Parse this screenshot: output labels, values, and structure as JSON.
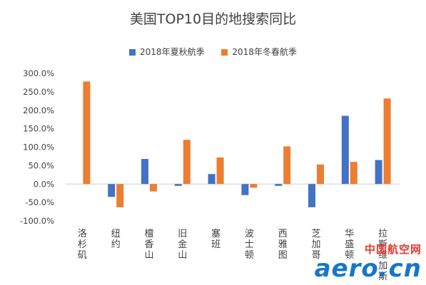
{
  "chart_data": {
    "type": "bar",
    "title": "美国TOP10目的地搜索同比",
    "categories": [
      "洛杉矶",
      "纽约",
      "檀香山",
      "旧金山",
      "塞班",
      "波士顿",
      "西雅图",
      "芝加哥",
      "华盛顿",
      "拉斯维加斯"
    ],
    "series": [
      {
        "name": "2018年夏秋航季",
        "color": "#4472C4",
        "values": [
          0,
          -35,
          68,
          -5,
          27,
          -30,
          -5,
          -63,
          185,
          65
        ]
      },
      {
        "name": "2018年冬春航季",
        "color": "#ED7D31",
        "values": [
          278,
          -63,
          -20,
          120,
          72,
          -10,
          102,
          53,
          60,
          232
        ]
      }
    ],
    "ylim": [
      -100,
      300
    ],
    "yticks": [
      "300.0%",
      "250.0%",
      "200.0%",
      "150.0%",
      "100.0%",
      "50.0%",
      "0.0%",
      "-50.0%",
      "-100.0%"
    ],
    "ytick_values": [
      300,
      250,
      200,
      150,
      100,
      50,
      0,
      -50,
      -100
    ],
    "grid": false,
    "legend": "top"
  },
  "watermark": {
    "cn": "中国航空网",
    "en": "aero.cn"
  }
}
